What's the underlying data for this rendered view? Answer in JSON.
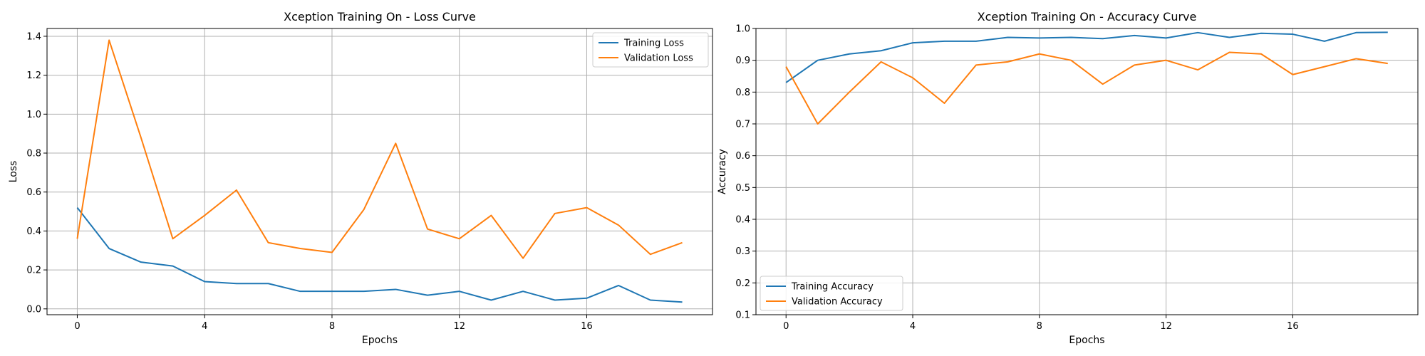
{
  "chart_data": [
    {
      "type": "line",
      "title": "Xception Training On - Loss Curve",
      "xlabel": "Epochs",
      "ylabel": "Loss",
      "xlim": [
        -0.95,
        19.95
      ],
      "ylim": [
        -0.03,
        1.44
      ],
      "xticks": [
        0,
        4,
        8,
        12,
        16
      ],
      "yticks": [
        0.0,
        0.2,
        0.4,
        0.6,
        0.8,
        1.0,
        1.2,
        1.4
      ],
      "ytick_labels": [
        "0.0",
        "0.2",
        "0.4",
        "0.6",
        "0.8",
        "1.0",
        "1.2",
        "1.4"
      ],
      "grid": true,
      "legend_position": "top-right",
      "x": [
        0,
        1,
        2,
        3,
        4,
        5,
        6,
        7,
        8,
        9,
        10,
        11,
        12,
        13,
        14,
        15,
        16,
        17,
        18,
        19
      ],
      "series": [
        {
          "name": "Training Loss",
          "color": "#1f77b4",
          "values": [
            0.52,
            0.31,
            0.24,
            0.22,
            0.14,
            0.13,
            0.13,
            0.09,
            0.09,
            0.09,
            0.1,
            0.07,
            0.09,
            0.045,
            0.09,
            0.045,
            0.055,
            0.12,
            0.045,
            0.035
          ]
        },
        {
          "name": "Validation Loss",
          "color": "#ff7f0e",
          "values": [
            0.36,
            1.38,
            0.88,
            0.36,
            0.48,
            0.61,
            0.34,
            0.31,
            0.29,
            0.51,
            0.85,
            0.41,
            0.36,
            0.48,
            0.26,
            0.49,
            0.52,
            0.43,
            0.28,
            0.34
          ]
        }
      ]
    },
    {
      "type": "line",
      "title": "Xception Training On - Accuracy Curve",
      "xlabel": "Epochs",
      "ylabel": "Accuracy",
      "xlim": [
        -0.95,
        19.95
      ],
      "ylim": [
        0.1,
        1.0
      ],
      "xticks": [
        0,
        4,
        8,
        12,
        16
      ],
      "yticks": [
        0.1,
        0.2,
        0.3,
        0.4,
        0.5,
        0.6,
        0.7,
        0.8,
        0.9,
        1.0
      ],
      "ytick_labels": [
        "0.1",
        "0.2",
        "0.3",
        "0.4",
        "0.5",
        "0.6",
        "0.7",
        "0.8",
        "0.9",
        "1.0"
      ],
      "grid": true,
      "legend_position": "bottom-left",
      "x": [
        0,
        1,
        2,
        3,
        4,
        5,
        6,
        7,
        8,
        9,
        10,
        11,
        12,
        13,
        14,
        15,
        16,
        17,
        18,
        19
      ],
      "series": [
        {
          "name": "Training Accuracy",
          "color": "#1f77b4",
          "values": [
            0.83,
            0.9,
            0.92,
            0.93,
            0.955,
            0.96,
            0.96,
            0.972,
            0.97,
            0.972,
            0.968,
            0.978,
            0.97,
            0.987,
            0.972,
            0.985,
            0.982,
            0.96,
            0.987,
            0.988
          ]
        },
        {
          "name": "Validation Accuracy",
          "color": "#ff7f0e",
          "values": [
            0.88,
            0.7,
            0.8,
            0.895,
            0.845,
            0.765,
            0.885,
            0.895,
            0.92,
            0.9,
            0.825,
            0.885,
            0.9,
            0.87,
            0.925,
            0.92,
            0.855,
            0.88,
            0.905,
            0.89
          ]
        }
      ]
    }
  ]
}
